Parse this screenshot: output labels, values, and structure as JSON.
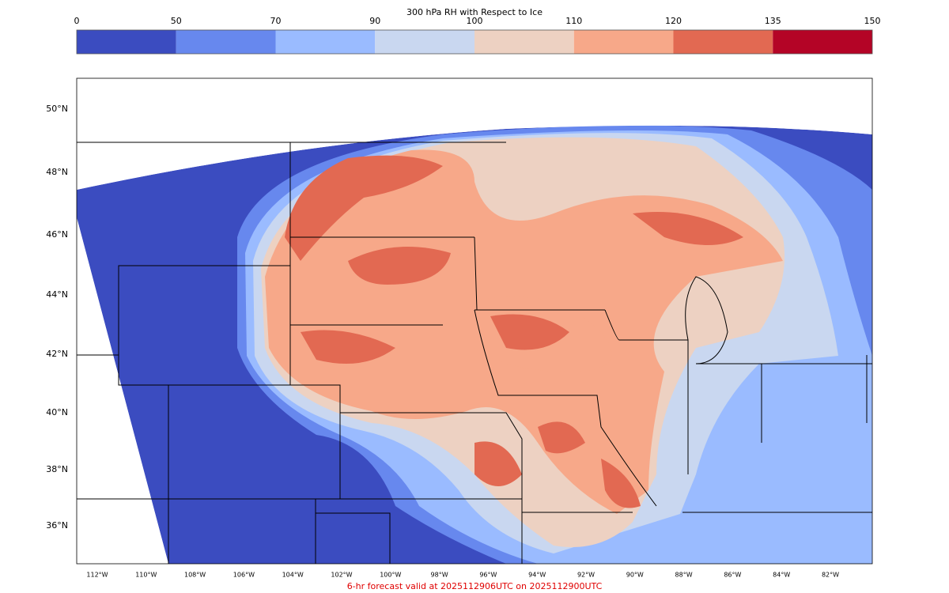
{
  "colorbar": {
    "title": "300 hPa RH with Respect to Ice",
    "levels": [
      0,
      50,
      70,
      90,
      100,
      110,
      120,
      135,
      150
    ],
    "colors": [
      "#3b4cc0",
      "#6788ee",
      "#9abbff",
      "#c9d7f0",
      "#edd1c2",
      "#f7a889",
      "#e26952",
      "#b40426"
    ]
  },
  "map": {
    "lat_labels": [
      "50°N",
      "48°N",
      "46°N",
      "44°N",
      "42°N",
      "40°N",
      "38°N",
      "36°N"
    ],
    "lon_labels": [
      "112°W",
      "110°W",
      "108°W",
      "106°W",
      "104°W",
      "102°W",
      "100°W",
      "98°W",
      "96°W",
      "94°W",
      "92°W",
      "90°W",
      "88°W",
      "86°W",
      "84°W",
      "82°W"
    ]
  },
  "footer": "6-hr forecast valid at 2025112906UTC on 2025112900UTC"
}
